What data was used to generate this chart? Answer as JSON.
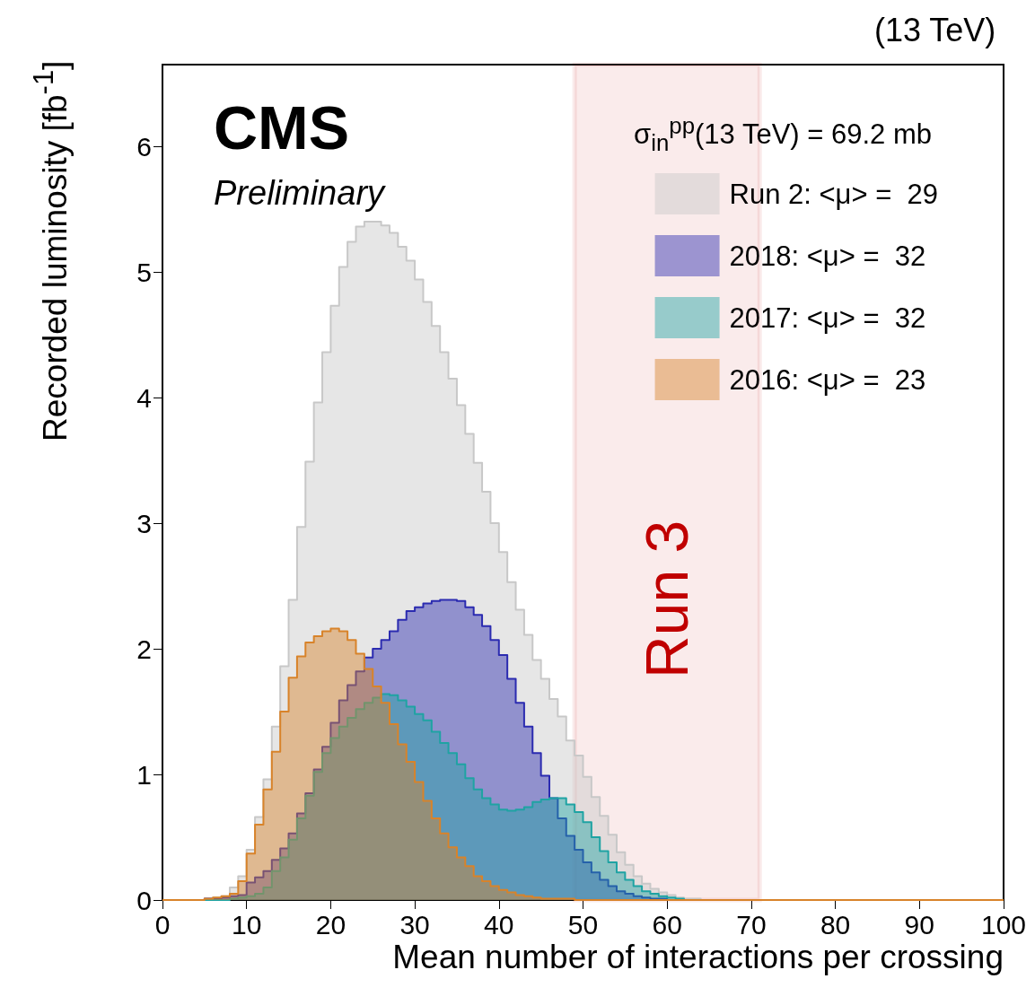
{
  "chart_data": {
    "type": "histogram",
    "title": "(13 TeV)",
    "xlabel": "Mean number of interactions per crossing",
    "ylabel": "Recorded luminosity [fb$^{-1}$]",
    "legend_title": "σ$_{in}$$^{pp}$(13 TeV) = 69.2 mb",
    "annotations": [
      "CMS",
      "Preliminary"
    ],
    "bins": [
      0,
      1,
      2,
      3,
      4,
      5,
      6,
      7,
      8,
      9,
      10,
      11,
      12,
      13,
      14,
      15,
      16,
      17,
      18,
      19,
      20,
      21,
      22,
      23,
      24,
      25,
      26,
      27,
      28,
      29,
      30,
      31,
      32,
      33,
      34,
      35,
      36,
      37,
      38,
      39,
      40,
      41,
      42,
      43,
      44,
      45,
      46,
      47,
      48,
      49,
      50,
      51,
      52,
      53,
      54,
      55,
      56,
      57,
      58,
      59,
      60,
      61,
      62,
      63,
      64,
      65,
      66,
      67,
      68,
      69,
      70,
      71,
      72,
      73,
      74,
      75,
      76,
      77,
      78,
      79,
      80,
      81,
      82,
      83,
      84,
      85,
      86,
      87,
      88,
      89,
      90,
      91,
      92,
      93,
      94,
      95,
      96,
      97,
      98,
      99,
      100
    ],
    "series": [
      {
        "name": "Run 2: <μ> =  29",
        "color": "#c8c8c8",
        "values": [
          0,
          0,
          0,
          0,
          0,
          0.01,
          0.02,
          0.03,
          0.1,
          0.19,
          0.4,
          0.66,
          0.96,
          1.38,
          1.86,
          2.39,
          2.97,
          3.49,
          3.96,
          4.36,
          4.73,
          5.04,
          5.24,
          5.36,
          5.4,
          5.4,
          5.37,
          5.31,
          5.2,
          5.09,
          4.94,
          4.76,
          4.57,
          4.36,
          4.15,
          3.94,
          3.71,
          3.48,
          3.25,
          3.0,
          2.77,
          2.53,
          2.31,
          2.11,
          1.91,
          1.76,
          1.6,
          1.46,
          1.27,
          1.15,
          0.98,
          0.82,
          0.67,
          0.52,
          0.38,
          0.28,
          0.19,
          0.13,
          0.09,
          0.06,
          0.04,
          0.02,
          0.01,
          0.01,
          0,
          0,
          0,
          0,
          0,
          0,
          0,
          0,
          0,
          0,
          0,
          0,
          0,
          0,
          0,
          0,
          0,
          0,
          0,
          0,
          0,
          0,
          0,
          0,
          0,
          0,
          0,
          0,
          0,
          0,
          0,
          0,
          0,
          0,
          0,
          0
        ]
      },
      {
        "name": "2018: <μ> =  32",
        "color": "#2b2bb0",
        "values": [
          0,
          0,
          0,
          0,
          0,
          0.01,
          0.01,
          0.02,
          0.03,
          0.04,
          0.14,
          0.18,
          0.23,
          0.32,
          0.41,
          0.53,
          0.69,
          0.85,
          1.04,
          1.22,
          1.41,
          1.59,
          1.71,
          1.82,
          1.93,
          2.0,
          2.07,
          2.14,
          2.23,
          2.3,
          2.33,
          2.36,
          2.38,
          2.39,
          2.39,
          2.38,
          2.33,
          2.27,
          2.18,
          2.07,
          1.95,
          1.76,
          1.57,
          1.38,
          1.17,
          0.99,
          0.81,
          0.65,
          0.51,
          0.4,
          0.3,
          0.22,
          0.16,
          0.11,
          0.07,
          0.05,
          0.03,
          0.02,
          0.01,
          0.01,
          0,
          0,
          0,
          0,
          0,
          0,
          0,
          0,
          0,
          0,
          0,
          0,
          0,
          0,
          0,
          0,
          0,
          0,
          0,
          0,
          0,
          0,
          0,
          0,
          0,
          0,
          0,
          0,
          0,
          0,
          0,
          0,
          0,
          0,
          0,
          0,
          0,
          0,
          0,
          0
        ]
      },
      {
        "name": "2017: <μ> =  32",
        "color": "#1fa3a3",
        "values": [
          0,
          0,
          0,
          0,
          0,
          0,
          0,
          0,
          0.01,
          0.02,
          0.03,
          0.05,
          0.1,
          0.23,
          0.34,
          0.48,
          0.65,
          0.83,
          1.02,
          1.17,
          1.29,
          1.38,
          1.45,
          1.52,
          1.57,
          1.61,
          1.64,
          1.63,
          1.59,
          1.54,
          1.48,
          1.43,
          1.34,
          1.25,
          1.17,
          1.08,
          0.97,
          0.88,
          0.81,
          0.76,
          0.72,
          0.71,
          0.72,
          0.74,
          0.78,
          0.8,
          0.81,
          0.81,
          0.76,
          0.7,
          0.62,
          0.5,
          0.39,
          0.3,
          0.22,
          0.16,
          0.11,
          0.07,
          0.05,
          0.03,
          0.02,
          0.01,
          0,
          0,
          0,
          0,
          0,
          0,
          0,
          0,
          0,
          0,
          0,
          0,
          0,
          0,
          0,
          0,
          0,
          0,
          0,
          0,
          0,
          0,
          0,
          0,
          0,
          0,
          0,
          0,
          0,
          0,
          0,
          0,
          0,
          0,
          0,
          0,
          0,
          0
        ]
      },
      {
        "name": "2016: <μ> =  23",
        "color": "#d8832a",
        "values": [
          0,
          0,
          0,
          0,
          0,
          0.01,
          0.02,
          0.03,
          0.05,
          0.15,
          0.37,
          0.6,
          0.88,
          1.18,
          1.5,
          1.77,
          1.94,
          2.05,
          2.1,
          2.14,
          2.16,
          2.14,
          2.07,
          1.96,
          1.84,
          1.7,
          1.57,
          1.4,
          1.24,
          1.1,
          0.94,
          0.79,
          0.65,
          0.53,
          0.42,
          0.34,
          0.27,
          0.19,
          0.15,
          0.11,
          0.08,
          0.06,
          0.04,
          0.03,
          0.02,
          0.01,
          0.01,
          0.01,
          0.01,
          0,
          0,
          0,
          0,
          0,
          0,
          0,
          0,
          0,
          0,
          0,
          0,
          0,
          0,
          0,
          0,
          0,
          0,
          0,
          0,
          0,
          0,
          0,
          0,
          0,
          0,
          0,
          0,
          0,
          0,
          0,
          0,
          0,
          0,
          0,
          0,
          0,
          0,
          0,
          0,
          0,
          0,
          0,
          0,
          0,
          0,
          0,
          0,
          0,
          0,
          0
        ]
      }
    ],
    "bands": [
      {
        "axis": "x",
        "from": 49,
        "to": 71,
        "label": "Run 3",
        "color": "#c00000"
      }
    ],
    "xlim": [
      0,
      100
    ],
    "xticks": [
      0,
      10,
      20,
      30,
      40,
      50,
      60,
      70,
      80,
      90,
      100
    ],
    "ylim": [
      0,
      6.65
    ],
    "yticks": [
      0,
      1,
      2,
      3,
      4,
      5,
      6
    ],
    "legend": "top right"
  }
}
